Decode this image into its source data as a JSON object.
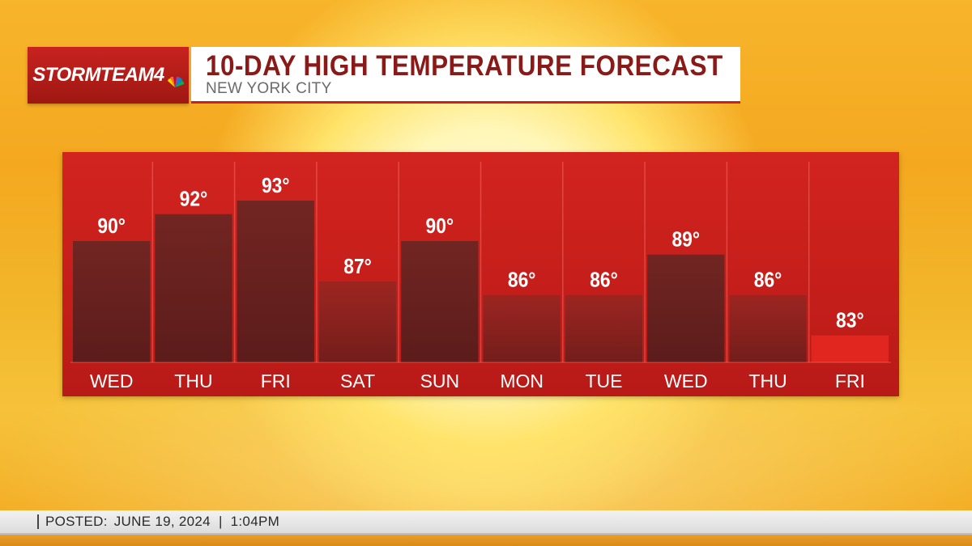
{
  "header": {
    "logo_text": "STORMTEAM4",
    "title": "10-DAY HIGH TEMPERATURE FORECAST",
    "subtitle": "NEW YORK CITY"
  },
  "footer": {
    "posted_label": "POSTED:",
    "date": "JUNE 19, 2024",
    "separator": "|",
    "time": "1:04PM"
  },
  "colors": {
    "brand_red": "#c8231f",
    "bar_dark": "#5e2120",
    "bar_highlight": "#e0261f"
  },
  "chart_data": {
    "type": "bar",
    "title": "10-DAY HIGH TEMPERATURE FORECAST",
    "subtitle": "NEW YORK CITY",
    "categories": [
      "WED",
      "THU",
      "FRI",
      "SAT",
      "SUN",
      "MON",
      "TUE",
      "WED",
      "THU",
      "FRI"
    ],
    "values": [
      90,
      92,
      93,
      87,
      90,
      86,
      86,
      89,
      86,
      83
    ],
    "data_labels": [
      "90°",
      "92°",
      "93°",
      "87°",
      "90°",
      "86°",
      "86°",
      "89°",
      "86°",
      "83°"
    ],
    "xlabel": "",
    "ylabel": "",
    "ylim": [
      81,
      96
    ],
    "grid": false,
    "legend": "none"
  }
}
